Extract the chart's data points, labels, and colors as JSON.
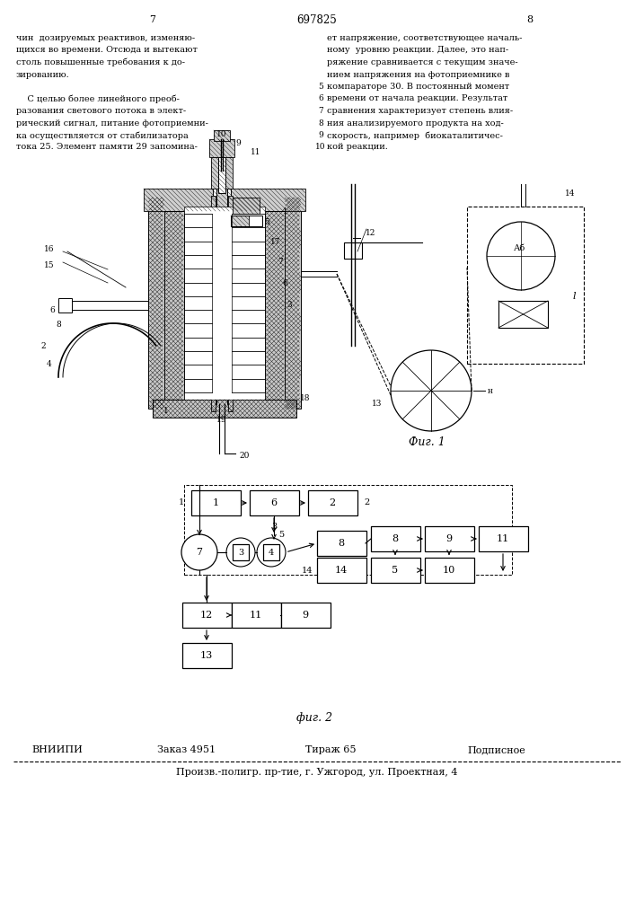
{
  "bg_color": "#ffffff",
  "page_num_left": "7",
  "page_num_center": "697825",
  "page_num_right": "8",
  "text_left_lines": [
    "чин  дозируемых реактивов, изменяю-",
    "щихся во времени. Отсюда и вытекают",
    "столь повышенные требования к до-",
    "зированию.",
    "",
    "    С целью более линейного преоб-",
    "разования светового потока в элект-",
    "рический сигнал, питание фотоприемни-",
    "ка осуществляется от стабилизатора",
    "тока 25. Элемент памяти 29 запомина-"
  ],
  "text_right_lines": [
    "ет напряжение, соответствующее началь-",
    "ному  уровню реакции. Далее, это нап-",
    "ряжение сравнивается с текущим значе-",
    "нием напряжения на фотоприемнике в",
    "компараторе 30. В постоянный момент",
    "времени от начала реакции. Результат",
    "сравнения характеризует степень влия-",
    "ния анализируемого продукта на ход-",
    "скорость, например  биокаталитичес-",
    "кой реакции."
  ],
  "fig1_caption": "Фиг. 1",
  "fig2_caption": "фиг. 2",
  "footer_line1_parts": [
    "ВНИИПИ",
    "Заказ 4951",
    "Тираж 65",
    "Подписное"
  ],
  "footer_line1_x": [
    35,
    175,
    340,
    520
  ],
  "footer_line2": "Произв.-полигр. пр-тие, г. Ужгород, ул. Проектная, 4"
}
